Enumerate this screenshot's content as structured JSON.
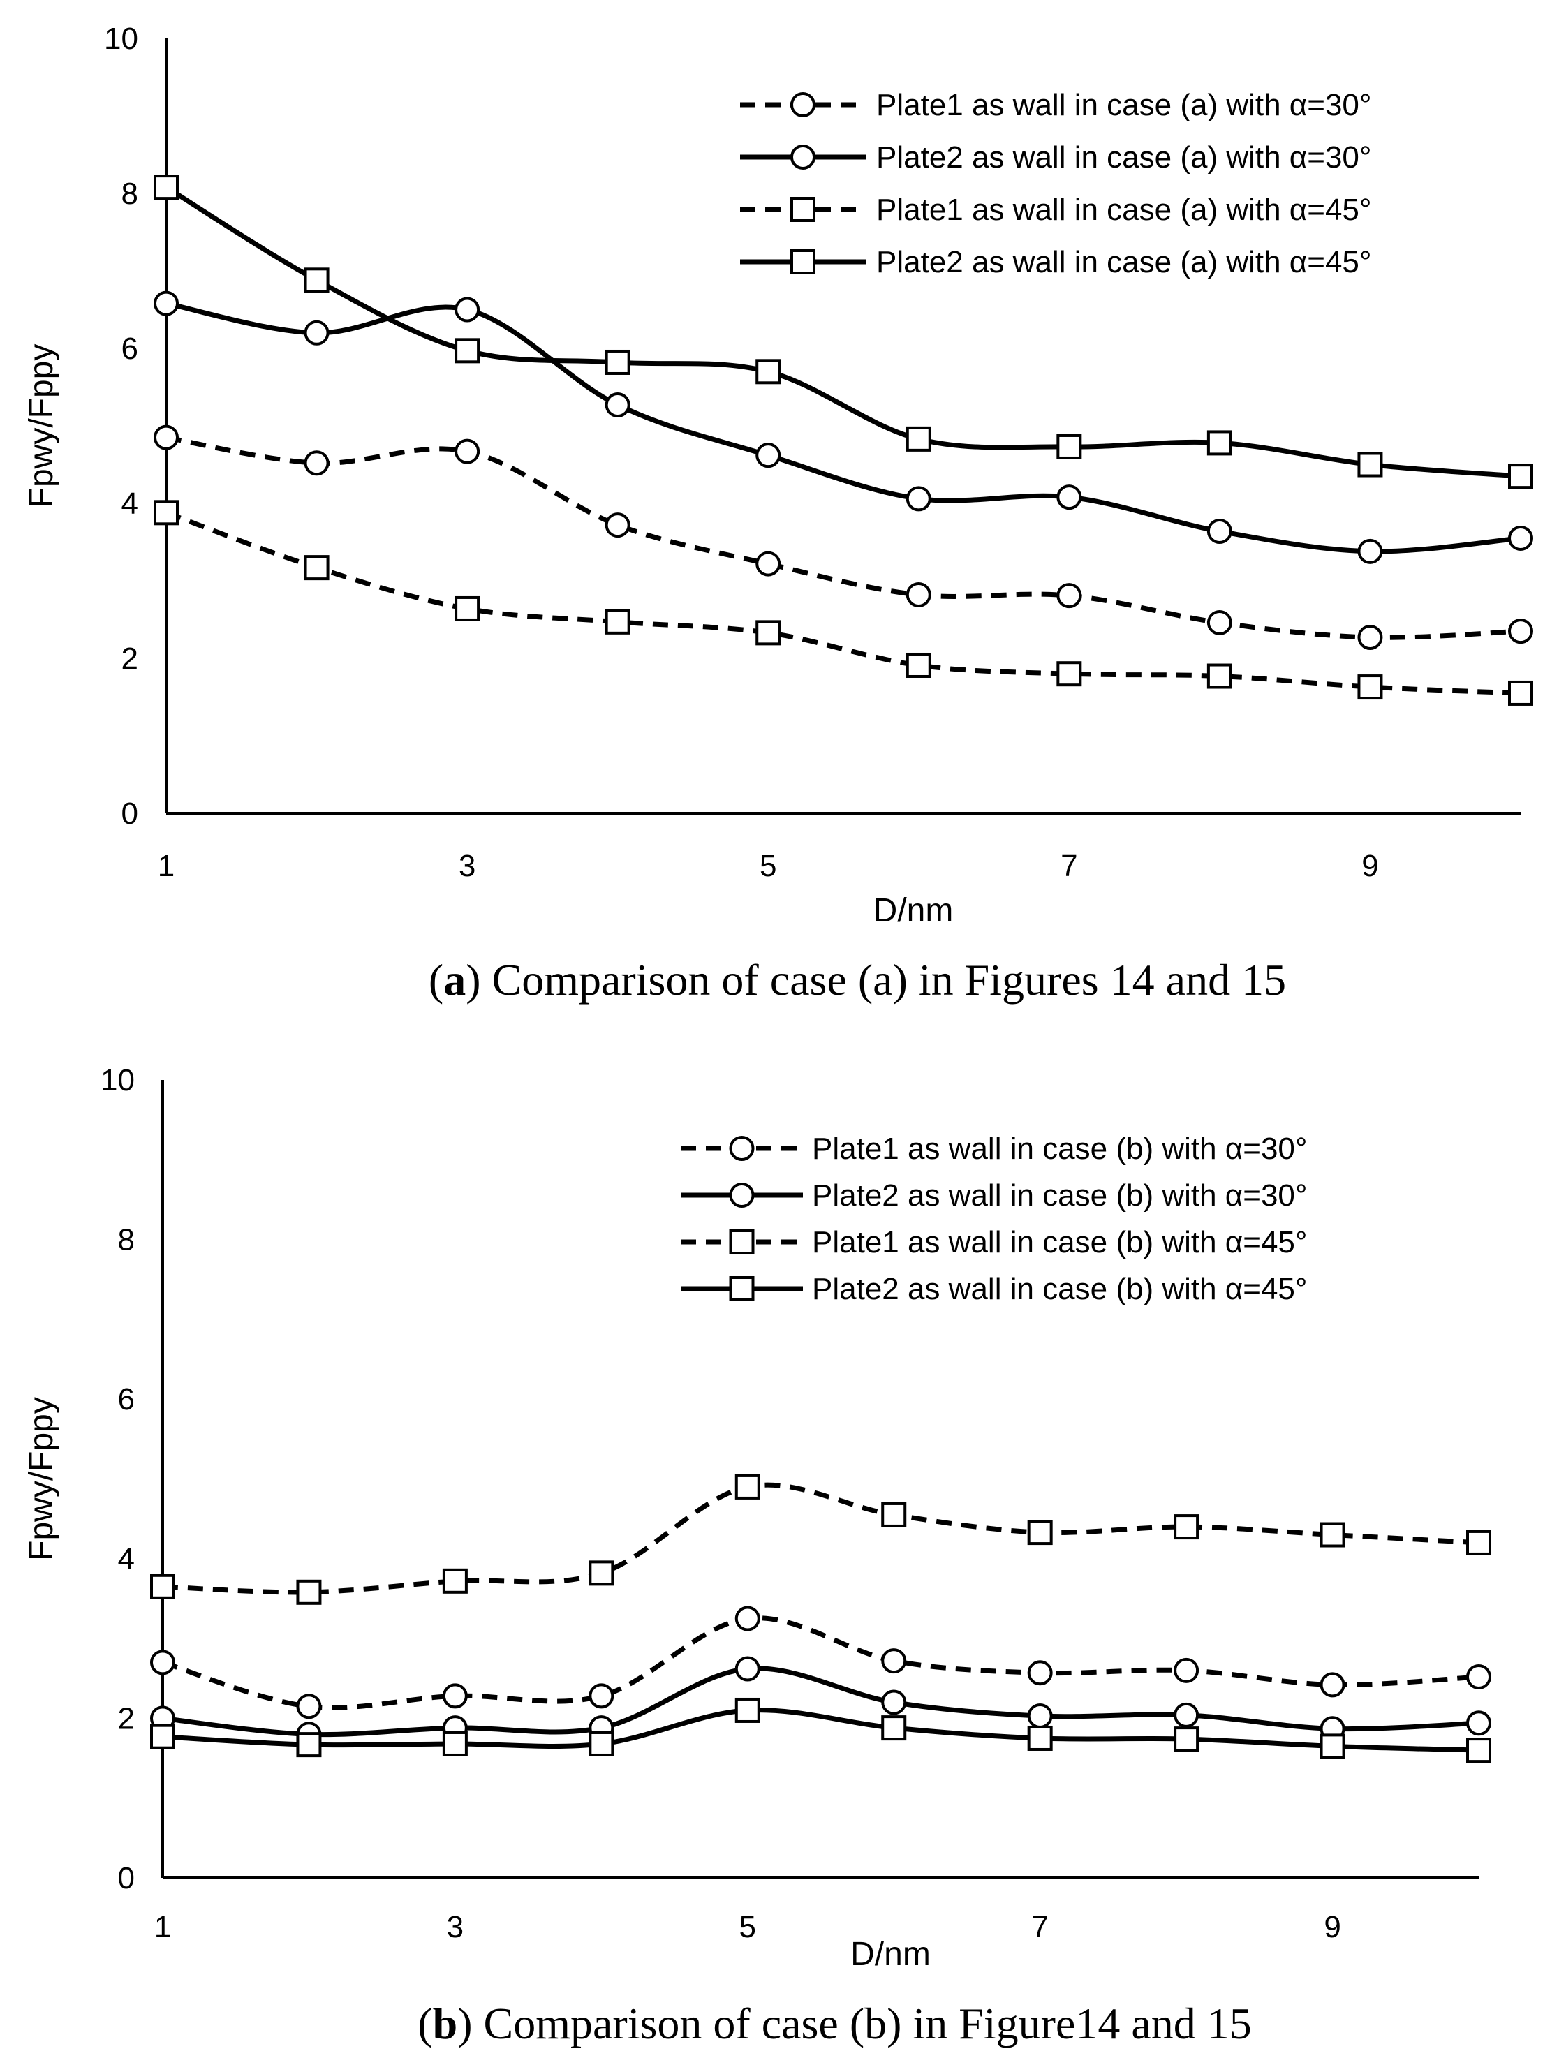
{
  "chart_data": [
    {
      "type": "line",
      "caption_prefix": "(",
      "caption_letter": "a",
      "caption_rest": ") Comparison of case (a) in Figures 14 and 15",
      "xlabel": "D/nm",
      "ylabel": "Fpwy/Fppy",
      "xlim": [
        1,
        10
      ],
      "ylim": [
        0,
        10
      ],
      "x_ticks": [
        1,
        3,
        5,
        7,
        9
      ],
      "y_ticks": [
        0,
        2,
        4,
        6,
        8,
        10
      ],
      "grid": false,
      "legend_position": "top-right",
      "x": [
        1,
        2,
        3,
        4,
        5,
        6,
        7,
        8,
        9,
        10
      ],
      "series": [
        {
          "name": "Plate1 as wall in case (a) with α=30°",
          "line": "dashed",
          "marker": "circle",
          "values": [
            4.85,
            4.52,
            4.67,
            3.72,
            3.22,
            2.82,
            2.81,
            2.46,
            2.27,
            2.35
          ]
        },
        {
          "name": "Plate2 as wall in case (a) with α=30°",
          "line": "solid",
          "marker": "circle",
          "values": [
            6.58,
            6.2,
            6.5,
            5.27,
            4.62,
            4.06,
            4.08,
            3.64,
            3.38,
            3.55
          ]
        },
        {
          "name": "Plate1 as wall in case (a) with α=45°",
          "line": "dashed",
          "marker": "square",
          "values": [
            3.88,
            3.17,
            2.64,
            2.47,
            2.33,
            1.91,
            1.8,
            1.77,
            1.63,
            1.55
          ]
        },
        {
          "name": "Plate2 as wall in case (a) with α=45°",
          "line": "solid",
          "marker": "square",
          "values": [
            8.08,
            6.88,
            5.97,
            5.82,
            5.7,
            4.83,
            4.73,
            4.78,
            4.5,
            4.35
          ]
        }
      ]
    },
    {
      "type": "line",
      "caption_prefix": "(",
      "caption_letter": "b",
      "caption_rest": ") Comparison of case (b) in Figure14 and 15",
      "xlabel": "D/nm",
      "ylabel": "Fpwy/Fppy",
      "xlim": [
        1,
        10
      ],
      "ylim": [
        0,
        10
      ],
      "x_ticks": [
        1,
        3,
        5,
        7,
        9
      ],
      "y_ticks": [
        0,
        2,
        4,
        6,
        8,
        10
      ],
      "grid": false,
      "legend_position": "top-right",
      "x": [
        1,
        2,
        3,
        4,
        5,
        6,
        7,
        8,
        9,
        10
      ],
      "series": [
        {
          "name": "Plate1 as wall in case (b) with α=30°",
          "line": "dashed",
          "marker": "circle",
          "values": [
            2.7,
            2.15,
            2.28,
            2.28,
            3.25,
            2.72,
            2.57,
            2.6,
            2.42,
            2.52
          ]
        },
        {
          "name": "Plate2 as wall in case (b) with  α=30°",
          "line": "solid",
          "marker": "circle",
          "values": [
            2.0,
            1.8,
            1.88,
            1.88,
            2.62,
            2.2,
            2.03,
            2.04,
            1.87,
            1.94
          ]
        },
        {
          "name": "Plate1 as wall in case (b) with  α=45°",
          "line": "dashed",
          "marker": "square",
          "values": [
            3.65,
            3.58,
            3.72,
            3.82,
            4.9,
            4.55,
            4.33,
            4.4,
            4.3,
            4.2
          ]
        },
        {
          "name": "Plate2 as wall in case (b) with α=45°",
          "line": "solid",
          "marker": "square",
          "values": [
            1.77,
            1.67,
            1.68,
            1.68,
            2.1,
            1.88,
            1.75,
            1.74,
            1.65,
            1.6
          ]
        }
      ]
    }
  ]
}
